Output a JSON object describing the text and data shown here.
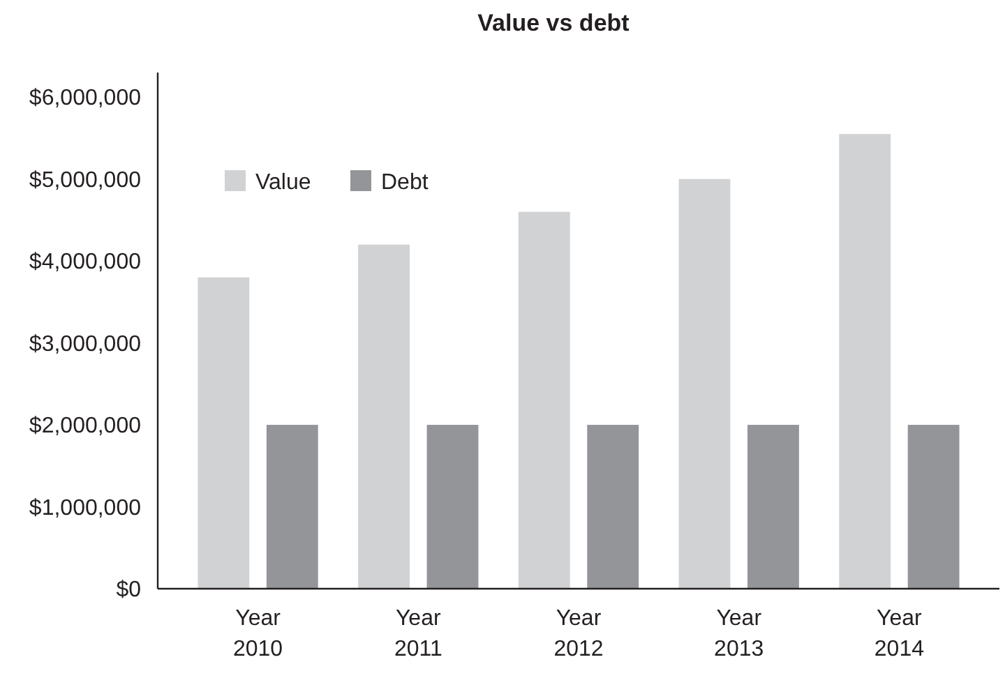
{
  "chart_data": {
    "type": "bar",
    "title": "Value vs debt",
    "categories": [
      "Year 2010",
      "Year 2011",
      "Year 2012",
      "Year 2013",
      "Year 2014"
    ],
    "series": [
      {
        "name": "Value",
        "color": "#d1d2d4",
        "values": [
          3800000,
          4200000,
          4600000,
          5000000,
          5550000
        ]
      },
      {
        "name": "Debt",
        "color": "#939598",
        "values": [
          2000000,
          2000000,
          2000000,
          2000000,
          2000000
        ]
      }
    ],
    "ylim": [
      0,
      6300000
    ],
    "yticks": [
      {
        "value": 0,
        "label": "$0"
      },
      {
        "value": 1000000,
        "label": "$1,000,000"
      },
      {
        "value": 2000000,
        "label": "$2,000,000"
      },
      {
        "value": 3000000,
        "label": "$3,000,000"
      },
      {
        "value": 4000000,
        "label": "$4,000,000"
      },
      {
        "value": 5000000,
        "label": "$5,000,000"
      },
      {
        "value": 6000000,
        "label": "$6,000,000"
      }
    ],
    "legend": "top left",
    "grid": false
  }
}
